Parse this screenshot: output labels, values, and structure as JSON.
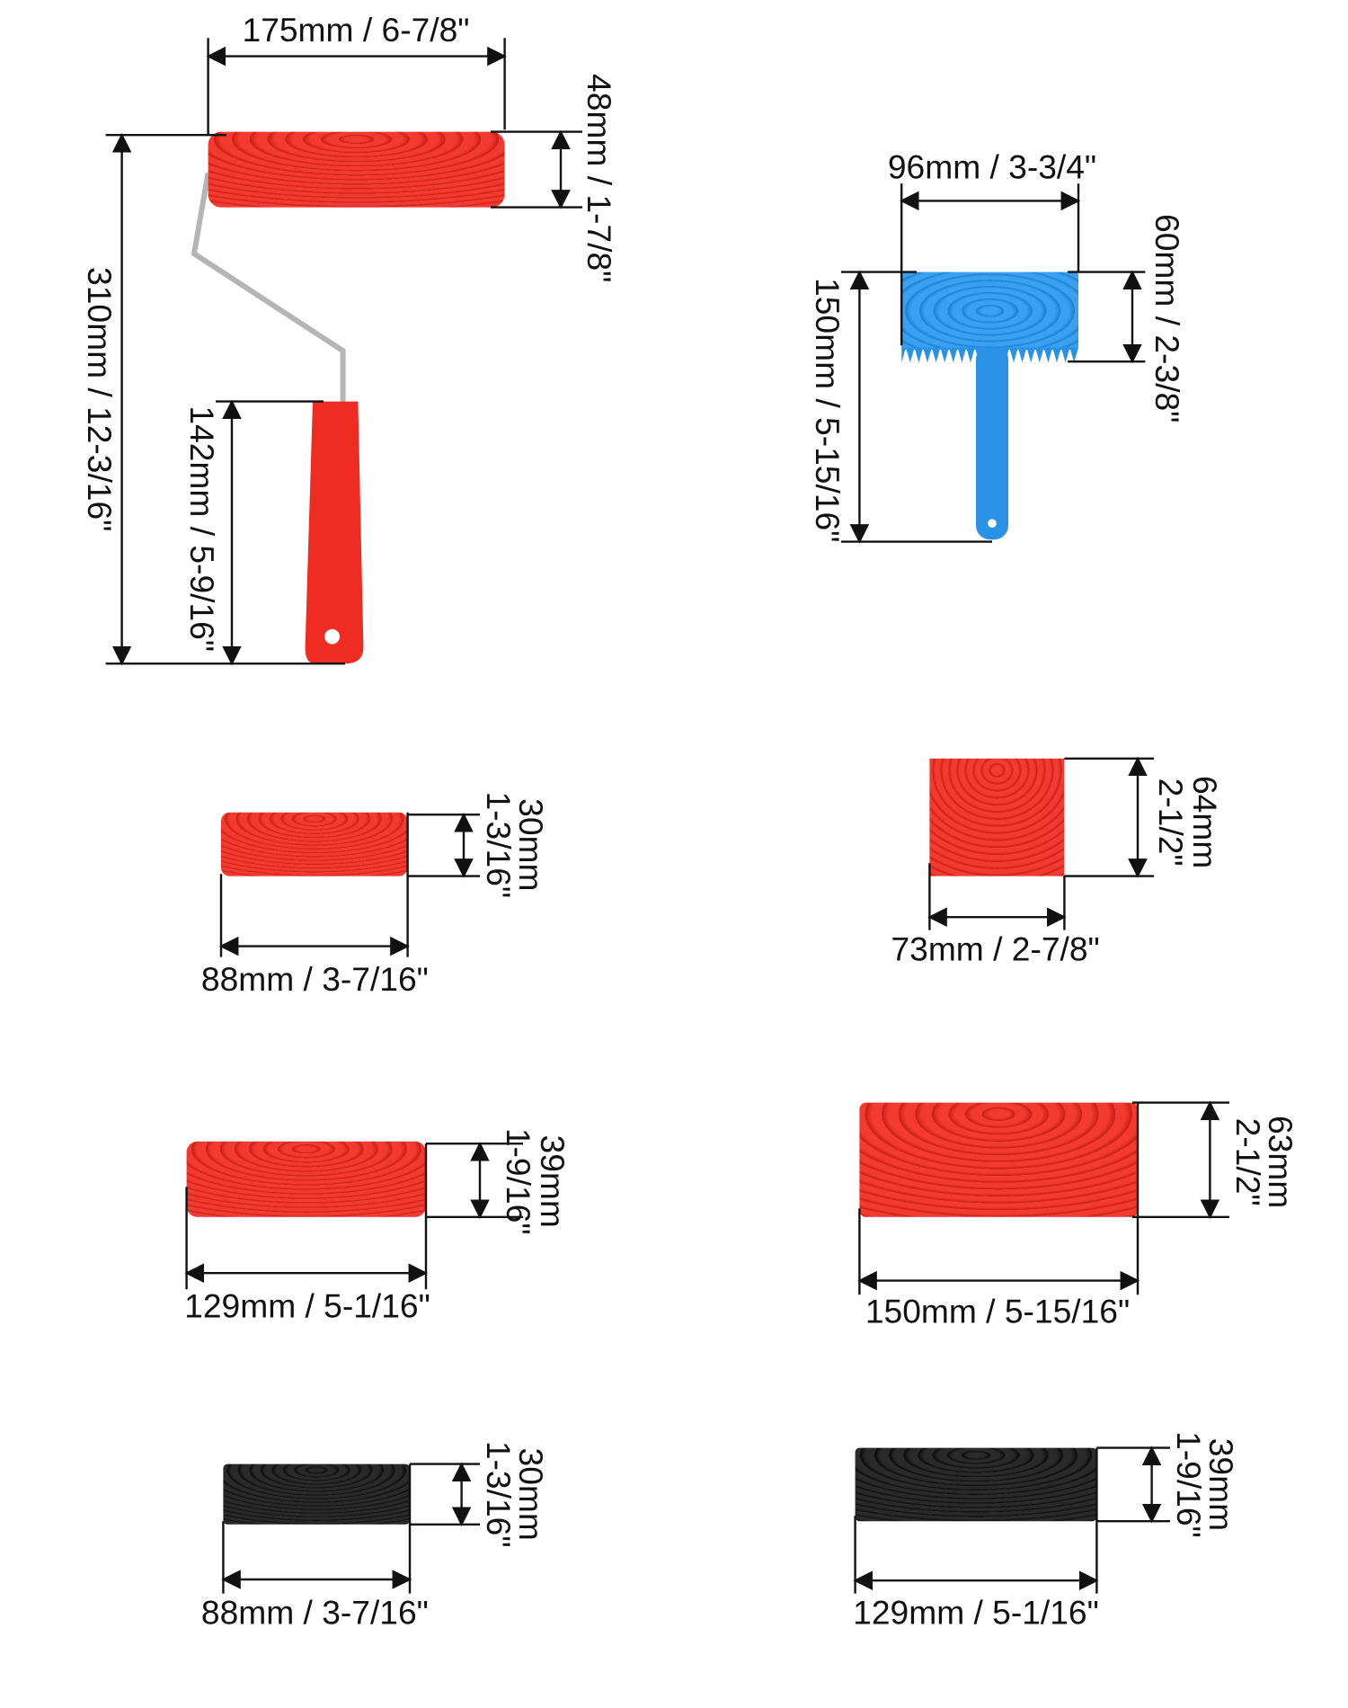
{
  "items": [
    {
      "width_label": "175mm / 6-7/8\"",
      "height_label": "48mm / 1-7/8\"",
      "total_height_label": "310mm / 12-3/16\"",
      "handle_label": "142mm / 5-9/16\""
    },
    {
      "width_label": "96mm / 3-3/4\"",
      "height_label": "60mm / 2-3/8\"",
      "total_height_label": "150mm / 5-15/16\""
    },
    {
      "width_label": "88mm / 3-7/16\"",
      "height_label": [
        "30mm",
        "1-3/16\""
      ]
    },
    {
      "width_label": "73mm / 2-7/8\"",
      "height_label": [
        "64mm",
        "2-1/2\""
      ]
    },
    {
      "width_label": "129mm / 5-1/16\"",
      "height_label": [
        "39mm",
        "1-9/16\""
      ]
    },
    {
      "width_label": "150mm / 5-15/16\"",
      "height_label": [
        "63mm",
        "2-1/2\""
      ]
    },
    {
      "width_label": "88mm / 3-7/16\"",
      "height_label": [
        "30mm",
        "1-3/16\""
      ]
    },
    {
      "width_label": "129mm / 5-1/16\"",
      "height_label": [
        "39mm",
        "1-9/16\""
      ]
    }
  ]
}
